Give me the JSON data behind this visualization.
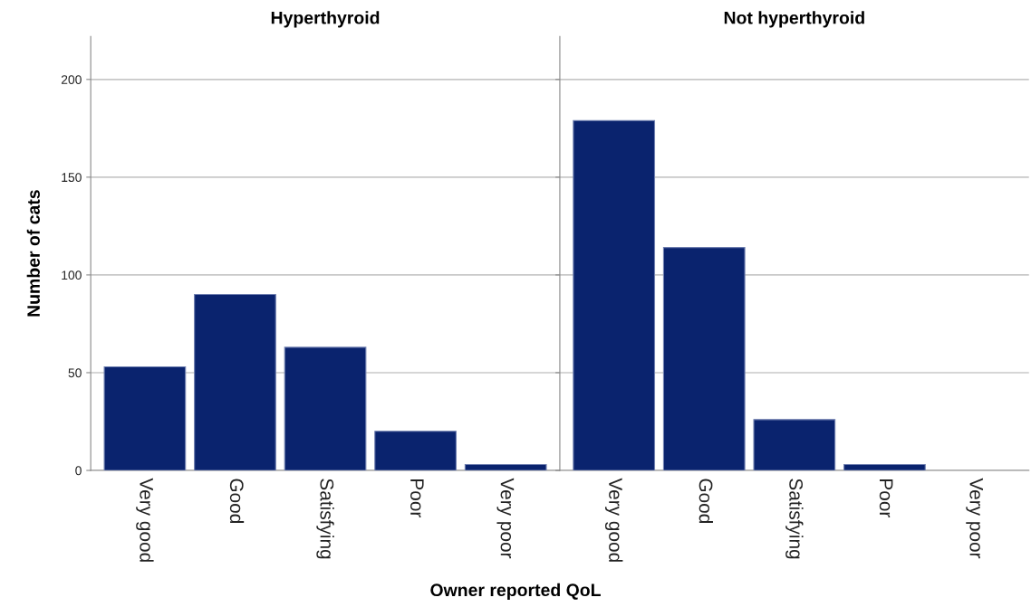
{
  "chart_data": [
    {
      "type": "bar",
      "title": "Hyperthyroid",
      "xlabel": "Owner reported QoL",
      "ylabel": "Number of cats",
      "categories": [
        "Very good",
        "Good",
        "Satisfying",
        "Poor",
        "Very poor"
      ],
      "values": [
        53,
        90,
        63,
        20,
        3
      ],
      "color": "#0a236e",
      "ylim": [
        0,
        222
      ],
      "yticks": [
        0,
        50,
        100,
        150,
        200
      ],
      "grid": "y"
    },
    {
      "type": "bar",
      "title": "Not hyperthyroid",
      "categories": [
        "Very good",
        "Good",
        "Satisfying",
        "Poor",
        "Very poor"
      ],
      "values": [
        179,
        114,
        26,
        3,
        0
      ],
      "color": "#0a236e",
      "ylim": [
        0,
        222
      ],
      "yticks": [
        0,
        50,
        100,
        150,
        200
      ],
      "grid": "y",
      "tick_labels": "x"
    }
  ]
}
